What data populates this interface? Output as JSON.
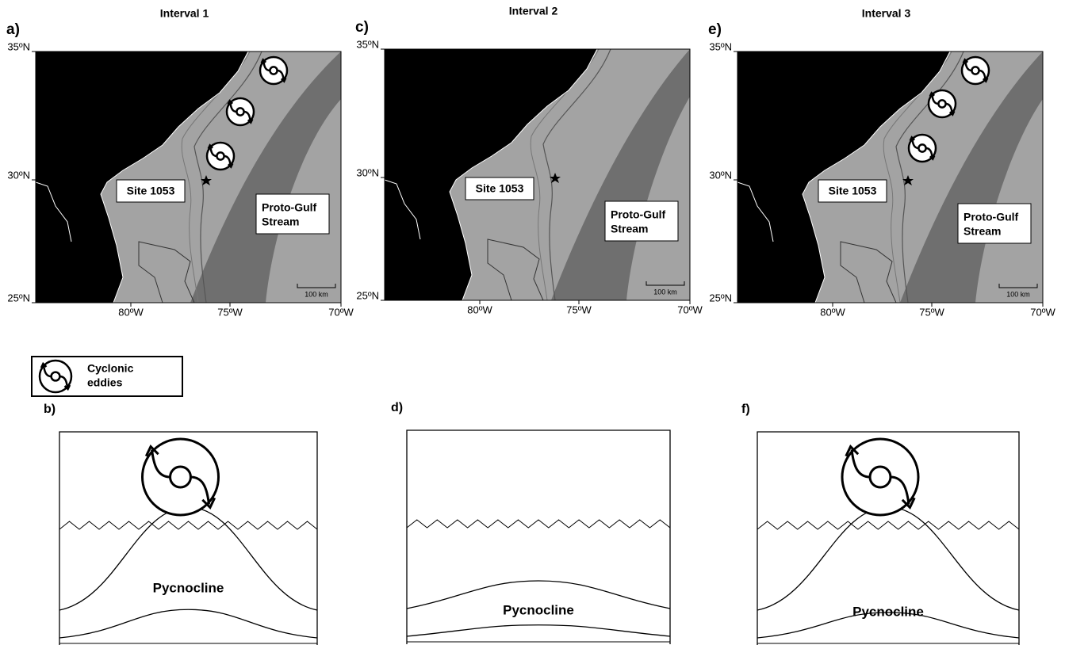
{
  "panels": [
    {
      "label": "a)",
      "title": "Interval 1",
      "lat_labels": [
        "35ºN",
        "30ºN",
        "25ºN"
      ],
      "lon_labels": [
        "80ºW",
        "75ºW",
        "70ºW"
      ],
      "site_label": "Site 1053",
      "current_label": [
        "Proto-Gulf",
        "Stream"
      ],
      "scale_label": "100 km"
    },
    {
      "label": "c)",
      "title": "Interval 2",
      "lat_labels": [
        "35ºN",
        "30ºN",
        "25ºN"
      ],
      "lon_labels": [
        "80ºW",
        "75ºW",
        "70ºW"
      ],
      "site_label": "Site 1053",
      "current_label": [
        "Proto-Gulf",
        "Stream"
      ],
      "scale_label": "100 km"
    },
    {
      "label": "e)",
      "title": "Interval 3",
      "lat_labels": [
        "35ºN",
        "30ºN",
        "25ºN"
      ],
      "lon_labels": [
        "80ºW",
        "75ºW",
        "70ºW"
      ],
      "site_label": "Site 1053",
      "current_label": [
        "Proto-Gulf",
        "Stream"
      ],
      "scale_label": "100 km"
    }
  ],
  "legend": {
    "label": [
      "Cyclonic",
      "eddies"
    ]
  },
  "sections": [
    {
      "label": "b)",
      "pycnocline_label": "Pycnocline"
    },
    {
      "label": "d)",
      "pycnocline_label": "Pycnocline"
    },
    {
      "label": "f)",
      "pycnocline_label": "Pycnocline"
    }
  ]
}
